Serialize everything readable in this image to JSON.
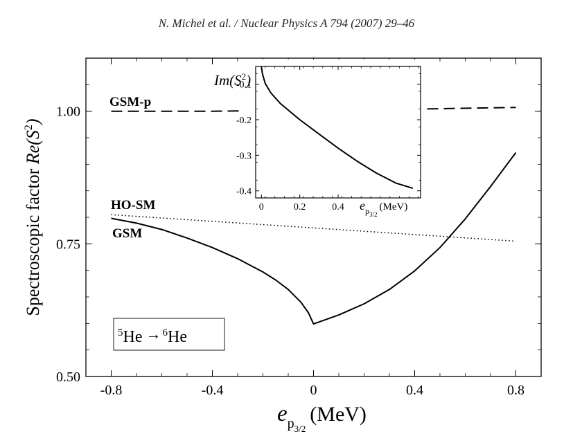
{
  "header": {
    "citation": "N. Michel et al. / Nuclear Physics A 794 (2007) 29–46"
  },
  "chart_data": [
    {
      "type": "line",
      "panel": "main",
      "xlabel": "e_{p_{3/2}} (MeV)",
      "xlabel_main": "e",
      "xlabel_sub": "p",
      "xlabel_subsub": "3/2",
      "xlabel_unit": "(MeV)",
      "ylabel": "Spectroscopic factor Re(S²)",
      "ylabel_plain": "Spectroscopic  factor ",
      "ylabel_func": "Re(S",
      "ylabel_sup": "2",
      "ylabel_close": ")",
      "xlim": [
        -0.9,
        0.9
      ],
      "ylim": [
        0.5,
        1.1
      ],
      "xticks": [
        -0.8,
        -0.4,
        0,
        0.4,
        0.8
      ],
      "xtick_labels": [
        "-0.8",
        "-0.4",
        "0",
        "0.4",
        "0.8"
      ],
      "yticks": [
        0.5,
        0.75,
        1.0
      ],
      "ytick_labels": [
        "0.50",
        "0.75",
        "1.00"
      ],
      "grid": false,
      "series": [
        {
          "name": "GSM-p",
          "style": "dashed",
          "x": [
            -0.8,
            -0.4,
            0,
            0.4,
            0.8
          ],
          "y": [
            1.0,
            1.0,
            1.002,
            1.004,
            1.007
          ]
        },
        {
          "name": "HO-SM",
          "style": "dotted",
          "x": [
            -0.8,
            0.8
          ],
          "y": [
            0.805,
            0.755
          ]
        },
        {
          "name": "GSM",
          "style": "solid",
          "x": [
            -0.8,
            -0.7,
            -0.6,
            -0.5,
            -0.4,
            -0.3,
            -0.2,
            -0.15,
            -0.1,
            -0.05,
            -0.02,
            0,
            0.1,
            0.2,
            0.3,
            0.4,
            0.5,
            0.6,
            0.7,
            0.8
          ],
          "y": [
            0.798,
            0.789,
            0.777,
            0.761,
            0.743,
            0.722,
            0.697,
            0.682,
            0.664,
            0.64,
            0.62,
            0.599,
            0.616,
            0.637,
            0.664,
            0.699,
            0.743,
            0.797,
            0.858,
            0.922
          ]
        }
      ],
      "box_label": {
        "a_sup": "5",
        "a_text": "He",
        "arrow": "→",
        "b_sup": "6",
        "b_text": "He"
      }
    },
    {
      "type": "line",
      "panel": "inset",
      "ylabel": "Im(S²)",
      "ylabel_func": "Im(S",
      "ylabel_sup": "2",
      "ylabel_close": ")",
      "xlabel": "e_{p_{3/2}}(MeV)",
      "xlabel_main": "e",
      "xlabel_sub": "p",
      "xlabel_subsub": "3/2",
      "xlabel_unit": "(MeV)",
      "xlim": [
        -0.03,
        0.83
      ],
      "ylim": [
        -0.42,
        -0.05
      ],
      "xticks": [
        0,
        0.2,
        0.4
      ],
      "xtick_labels": [
        "0",
        "0.2",
        "0.4"
      ],
      "yticks": [
        -0.1,
        -0.2,
        -0.3,
        -0.4
      ],
      "ytick_labels": [
        "-0.1",
        "-0.2",
        "-0.3",
        "-0.4"
      ],
      "series": [
        {
          "style": "solid",
          "x": [
            0.0,
            0.005,
            0.02,
            0.05,
            0.1,
            0.2,
            0.3,
            0.4,
            0.5,
            0.6,
            0.7,
            0.79
          ],
          "y": [
            -0.05,
            -0.07,
            -0.098,
            -0.125,
            -0.155,
            -0.2,
            -0.24,
            -0.28,
            -0.317,
            -0.35,
            -0.378,
            -0.393
          ]
        }
      ]
    }
  ]
}
